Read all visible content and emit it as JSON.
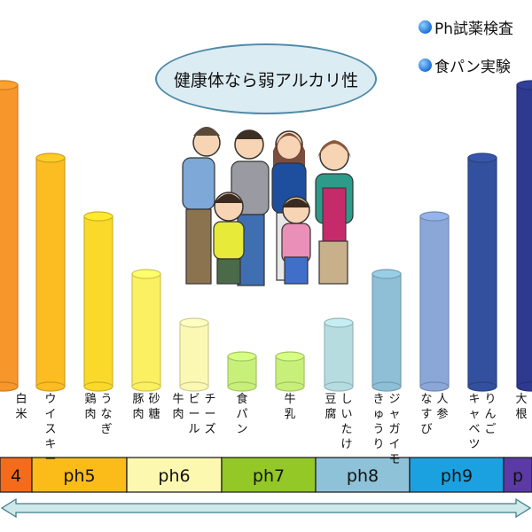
{
  "legend": [
    {
      "label": "Ph試薬検査"
    },
    {
      "label": "食パン実験"
    }
  ],
  "bubble_text": "健康体なら弱アルカリ性",
  "colors": {
    "band_outline": "#222222",
    "arrow_fill": "#cfe8ea",
    "arrow_stroke": "#3f7f8a"
  },
  "chart_data": {
    "type": "bar",
    "description_note": "",
    "bars": [
      {
        "labels": [
          "白米"
        ],
        "value": 4.2,
        "color": "#f7962a"
      },
      {
        "labels": [
          "ウイスキー"
        ],
        "value": 5.1,
        "color": "#fbbd22"
      },
      {
        "labels": [
          "鶏肉",
          "うなぎ"
        ],
        "value": 5.4,
        "color": "#fad92b"
      },
      {
        "labels": [
          "豚肉",
          "砂糖"
        ],
        "value": 5.9,
        "color": "#fbef62"
      },
      {
        "labels": [
          "牛肉",
          "ビール",
          "チーズ"
        ],
        "value": 6.5,
        "color": "#fbf8b4"
      },
      {
        "labels": [
          "食パン"
        ],
        "value": 7.0,
        "color": "#c7f07a"
      },
      {
        "labels": [
          "牛乳"
        ],
        "value": 7.0,
        "color": "#c7f07a"
      },
      {
        "labels": [
          "豆腐",
          "しいたけ"
        ],
        "value": 7.6,
        "color": "#b6dce0"
      },
      {
        "labels": [
          "きゅうり",
          "ジャガイモ"
        ],
        "value": 8.2,
        "color": "#8ebfd6"
      },
      {
        "labels": [
          "なすび",
          "人参"
        ],
        "value": 8.8,
        "color": "#8aa7d8"
      },
      {
        "labels": [
          "キャベツ",
          "りんご"
        ],
        "value": 9.4,
        "color": "#33509e"
      },
      {
        "labels": [
          "大根"
        ],
        "value": 10.0,
        "color": "#2e3a8f"
      }
    ],
    "ph_scale": [
      {
        "label": "4",
        "color": "#f36b1b"
      },
      {
        "label": "ph5",
        "color": "#fbbc1a"
      },
      {
        "label": "ph6",
        "color": "#fdf8b0"
      },
      {
        "label": "ph7",
        "color": "#93c826"
      },
      {
        "label": "ph8",
        "color": "#8ec2d8"
      },
      {
        "label": "ph9",
        "color": "#1ba1e0"
      },
      {
        "label": "p",
        "color": "#5b3aa6"
      }
    ]
  }
}
